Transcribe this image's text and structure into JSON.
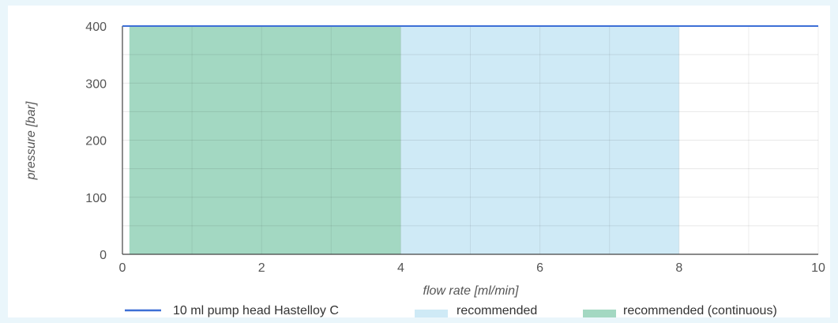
{
  "chart_data": {
    "type": "area",
    "title": "",
    "xlabel": "flow rate [ml/min]",
    "ylabel": "pressure [bar]",
    "xlim": [
      0,
      10
    ],
    "ylim": [
      0,
      400
    ],
    "x_ticks": [
      0,
      2,
      4,
      6,
      8,
      10
    ],
    "y_ticks": [
      0,
      100,
      200,
      300,
      400
    ],
    "grid": true,
    "legend_position": "bottom",
    "series": [
      {
        "name": "10 ml pump head Hastelloy C",
        "kind": "line",
        "color": "#3d6fd6",
        "points": [
          [
            0,
            400
          ],
          [
            10,
            400
          ]
        ]
      },
      {
        "name": "recommended",
        "kind": "band",
        "color": "#cfeaf6",
        "x_range": [
          4,
          8
        ],
        "y_range": [
          0,
          400
        ]
      },
      {
        "name": "recommended (continuous)",
        "kind": "band",
        "color": "#a3d8c2",
        "x_range": [
          0.1,
          4
        ],
        "y_range": [
          0,
          400
        ]
      }
    ]
  }
}
